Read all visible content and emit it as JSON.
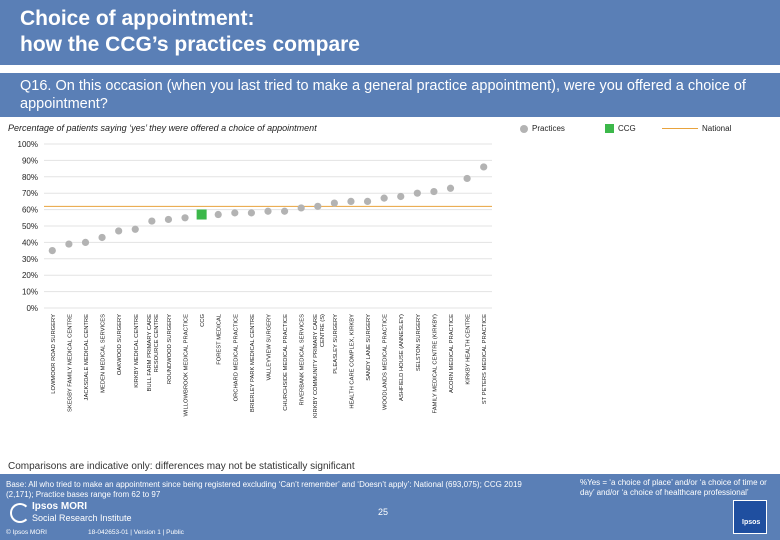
{
  "header": {
    "title_line1": "Choice of appointment:",
    "title_line2": "how the CCG’s practices compare"
  },
  "question": "Q16. On this occasion (when you last tried to make a general practice appointment), were you offered a choice of appointment?",
  "subtitle": "Percentage of patients saying ‘yes’ they were offered a choice of appointment",
  "legend": {
    "practices": "Practices",
    "ccg": "CCG",
    "national": "National"
  },
  "colors": {
    "practice": "#b3b3b3",
    "ccg": "#3cb84a",
    "national": "#e8a33d",
    "header": "#5a7fb6"
  },
  "chart_data": {
    "type": "scatter",
    "ylim": [
      0,
      100
    ],
    "yticks": [
      "0%",
      "10%",
      "20%",
      "30%",
      "40%",
      "50%",
      "60%",
      "70%",
      "80%",
      "90%",
      "100%"
    ],
    "national": 62,
    "categories": [
      "LOWMOOR ROAD SURGERY",
      "SKEGBY FAMILY MEDICAL CENTRE",
      "JACKSDALE MEDICAL CENTRE",
      "MEDEN MEDICAL SERVICES",
      "OAKWOOD SURGERY",
      "KIRKBY MEDICAL CENTRE",
      "BULL FARM PRIMARY CARE RESOURCE CENTRE",
      "ROUNDWOOD SURGERY",
      "WILLOWBROOK MEDICAL PRACTICE",
      "CCG",
      "FOREST MEDICAL",
      "ORCHARD MEDICAL PRACTICE",
      "BRIERLEY PARK MEDICAL CENTRE",
      "VALLEYVIEW SURGERY",
      "CHURCHSIDE MEDICAL PRACTICE",
      "RIVERBANK MEDICAL SERVICES",
      "KIRKBY COMMUNITY PRIMARY CARE CENTRE (S)",
      "PLEASLEY SURGERY",
      "HEALTH CARE COMPLEX, KIRKBY",
      "SANDY LANE SURGERY",
      "WOODLANDS MEDICAL PRACTICE",
      "ASHFIELD HOUSE (ANNESLEY)",
      "SELSTON SURGERY",
      "FAMILY MEDICAL CENTRE (KIRKBY)",
      "ACORN MEDICAL PRACTICE",
      "KIRKBY HEALTH CENTRE",
      "ST PETERS MEDICAL PRACTICE"
    ],
    "values": [
      35,
      39,
      40,
      43,
      47,
      48,
      53,
      54,
      55,
      57,
      57,
      58,
      58,
      59,
      59,
      61,
      62,
      64,
      65,
      65,
      67,
      68,
      70,
      71,
      73,
      79,
      86
    ],
    "highlight_index": 9
  },
  "note": "Comparisons are indicative only: differences may not be statistically significant",
  "footer": {
    "base": "Base: All who tried to make an appointment since being registered excluding ‘Can’t remember’ and ‘Doesn’t apply’: National (693,075); CCG 2019 (2,171); Practice bases range from 62 to 97",
    "definition": "%Yes = ‘a choice of place’ and/or ‘a choice of time or day’ and/or ‘a choice of healthcare professional’",
    "page": "25",
    "brand1": "Ipsos MORI",
    "brand2": "Social Research Institute",
    "copyright": "© Ipsos MORI",
    "jobref": "18-042653-01 | Version 1 | Public",
    "logo_text": "Ipsos"
  }
}
